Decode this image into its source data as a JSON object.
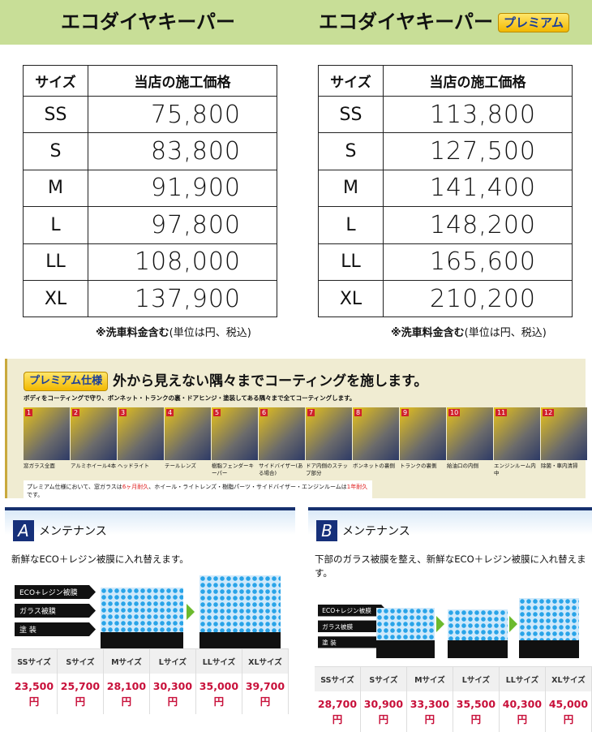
{
  "header": {
    "left_title": "エコダイヤキーパー",
    "right_title": "エコダイヤキーパー",
    "right_badge": "プレミアム"
  },
  "table_headers": {
    "size": "サイズ",
    "price": "当店の施工価格"
  },
  "standard_prices": [
    {
      "size": "SS",
      "price": "75,800"
    },
    {
      "size": "S",
      "price": "83,800"
    },
    {
      "size": "M",
      "price": "91,900"
    },
    {
      "size": "L",
      "price": "97,800"
    },
    {
      "size": "LL",
      "price": "108,000"
    },
    {
      "size": "XL",
      "price": "137,900"
    }
  ],
  "premium_prices": [
    {
      "size": "SS",
      "price": "113,800"
    },
    {
      "size": "S",
      "price": "127,500"
    },
    {
      "size": "M",
      "price": "141,400"
    },
    {
      "size": "L",
      "price": "148,200"
    },
    {
      "size": "LL",
      "price": "165,600"
    },
    {
      "size": "XL",
      "price": "210,200"
    }
  ],
  "note": {
    "bold": "※洗車料金含む",
    "rest": "(単位は円、税込)"
  },
  "premium_banner": {
    "badge": "プレミアム仕様",
    "title": "外から見えない隅々までコーティングを施します。",
    "subtitle": "ボディをコーティングで守り、ボンネット・トランクの裏・ドアヒンジ・塗装してある隅々まで全てコーティングします。",
    "items": [
      {
        "n": "1",
        "label": "窓ガラス全面"
      },
      {
        "n": "2",
        "label": "アルミホイール4本"
      },
      {
        "n": "3",
        "label": "ヘッドライト"
      },
      {
        "n": "4",
        "label": "テールレンズ"
      },
      {
        "n": "5",
        "label": "樹脂フェンダーキーパー"
      },
      {
        "n": "6",
        "label": "サイドバイザー(ある場合)"
      },
      {
        "n": "7",
        "label": "ドア内側のステップ部分"
      },
      {
        "n": "8",
        "label": "ボンネットの裏側"
      },
      {
        "n": "9",
        "label": "トランクの裏側"
      },
      {
        "n": "10",
        "label": "給油口の内側"
      },
      {
        "n": "11",
        "label": "エンジンルーム内中"
      },
      {
        "n": "12",
        "label": "除菌・車内清掃"
      }
    ],
    "footnote_a": "プレミアム仕様において、窓ガラスは",
    "footnote_red1": "6ヶ月耐久",
    "footnote_b": "、ホイール・ライトレンズ・樹脂パーツ・サイドバイザー・エンジンルームは",
    "footnote_red2": "1年耐久",
    "footnote_c": "です。"
  },
  "diagram_labels": [
    "ECO+レジン被膜",
    "ガラス被膜",
    "塗 装"
  ],
  "size_headers": [
    "SSサイズ",
    "Sサイズ",
    "Mサイズ",
    "Lサイズ",
    "LLサイズ",
    "XLサイズ"
  ],
  "maintenance_a": {
    "letter": "A",
    "title": "メンテナンス",
    "description": "新鮮なECO＋レジン被膜に入れ替えます。",
    "prices": [
      "23,500",
      "25,700",
      "28,100",
      "30,300",
      "35,000",
      "39,700"
    ],
    "unit": "円"
  },
  "maintenance_b": {
    "letter": "B",
    "title": "メンテナンス",
    "description": "下部のガラス被膜を整え、新鮮なECO＋レジン被膜に入れ替えます。",
    "prices": [
      "28,700",
      "30,900",
      "33,300",
      "35,500",
      "40,300",
      "45,000"
    ],
    "unit": "円"
  }
}
